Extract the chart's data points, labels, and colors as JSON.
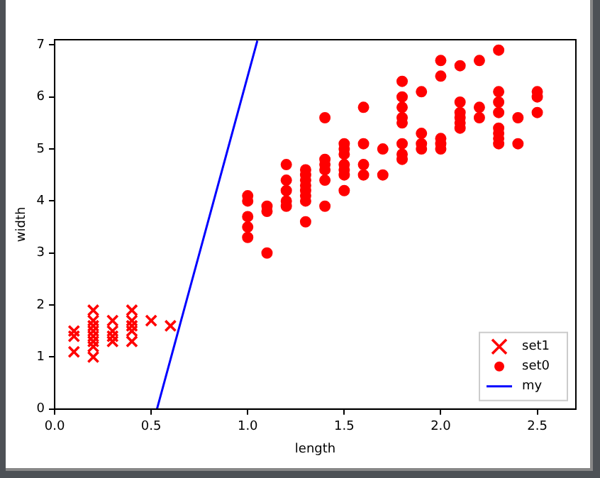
{
  "chart_data": {
    "type": "scatter",
    "xlabel": "length",
    "ylabel": "width",
    "xlim": [
      0,
      2.7
    ],
    "ylim": [
      0,
      7.1
    ],
    "xticks": [
      {
        "value": 0,
        "label": "0.0"
      },
      {
        "value": 0.5,
        "label": "0.5"
      },
      {
        "value": 1,
        "label": "1.0"
      },
      {
        "value": 1.5,
        "label": "1.5"
      },
      {
        "value": 2,
        "label": "2.0"
      },
      {
        "value": 2.5,
        "label": "2.5"
      }
    ],
    "yticks": [
      0,
      1,
      2,
      3,
      4,
      5,
      6,
      7
    ],
    "grid": false,
    "legend": "bottom right",
    "series": [
      {
        "name": "set1",
        "color": "#ff0000",
        "marker": "cross",
        "x": [
          0.1,
          0.1,
          0.1,
          0.2,
          0.2,
          0.2,
          0.2,
          0.2,
          0.2,
          0.2,
          0.2,
          0.3,
          0.3,
          0.3,
          0.3,
          0.4,
          0.4,
          0.4,
          0.4,
          0.4,
          0.5,
          0.6
        ],
        "values": [
          1.4,
          1.5,
          1.1,
          1.0,
          1.2,
          1.3,
          1.4,
          1.5,
          1.6,
          1.7,
          1.9,
          1.3,
          1.4,
          1.5,
          1.7,
          1.3,
          1.5,
          1.6,
          1.7,
          1.9,
          1.7,
          1.6
        ]
      },
      {
        "name": "set0",
        "color": "#ff0000",
        "marker": "circle",
        "x": [
          1.0,
          1.0,
          1.0,
          1.0,
          1.0,
          1.1,
          1.1,
          1.1,
          1.2,
          1.2,
          1.2,
          1.2,
          1.2,
          1.3,
          1.3,
          1.3,
          1.3,
          1.3,
          1.3,
          1.3,
          1.3,
          1.4,
          1.4,
          1.4,
          1.4,
          1.4,
          1.4,
          1.5,
          1.5,
          1.5,
          1.5,
          1.5,
          1.5,
          1.5,
          1.6,
          1.6,
          1.6,
          1.6,
          1.7,
          1.7,
          1.8,
          1.8,
          1.8,
          1.8,
          1.8,
          1.8,
          1.8,
          1.8,
          1.9,
          1.9,
          1.9,
          1.9,
          2.0,
          2.0,
          2.0,
          2.0,
          2.0,
          2.1,
          2.1,
          2.1,
          2.1,
          2.1,
          2.1,
          2.2,
          2.2,
          2.2,
          2.3,
          2.3,
          2.3,
          2.3,
          2.3,
          2.3,
          2.3,
          2.3,
          2.4,
          2.4,
          2.5,
          2.5,
          2.5
        ],
        "values": [
          4.1,
          4.0,
          3.7,
          3.5,
          3.3,
          3.9,
          3.8,
          3.0,
          4.7,
          4.4,
          4.2,
          4.0,
          3.9,
          4.6,
          4.5,
          4.4,
          4.3,
          4.2,
          4.1,
          4.0,
          3.6,
          5.6,
          4.8,
          4.7,
          4.6,
          4.4,
          3.9,
          5.1,
          5.0,
          4.9,
          4.7,
          4.6,
          4.5,
          4.2,
          5.8,
          5.1,
          4.7,
          4.5,
          5.0,
          4.5,
          6.3,
          6.0,
          5.8,
          5.6,
          5.5,
          5.1,
          4.9,
          4.8,
          6.1,
          5.3,
          5.1,
          5.0,
          6.7,
          6.4,
          5.2,
          5.1,
          5.0,
          6.6,
          5.9,
          5.7,
          5.6,
          5.5,
          5.4,
          6.7,
          5.8,
          5.6,
          6.9,
          6.1,
          5.9,
          5.7,
          5.4,
          5.3,
          5.2,
          5.1,
          5.6,
          5.1,
          6.1,
          6.0,
          5.7
        ]
      },
      {
        "name": "my",
        "type": "line",
        "color": "#0000ff",
        "marker": "none",
        "line_style": "solid",
        "x": [
          0.53,
          1.05
        ],
        "values": [
          0,
          7.08
        ]
      }
    ]
  }
}
